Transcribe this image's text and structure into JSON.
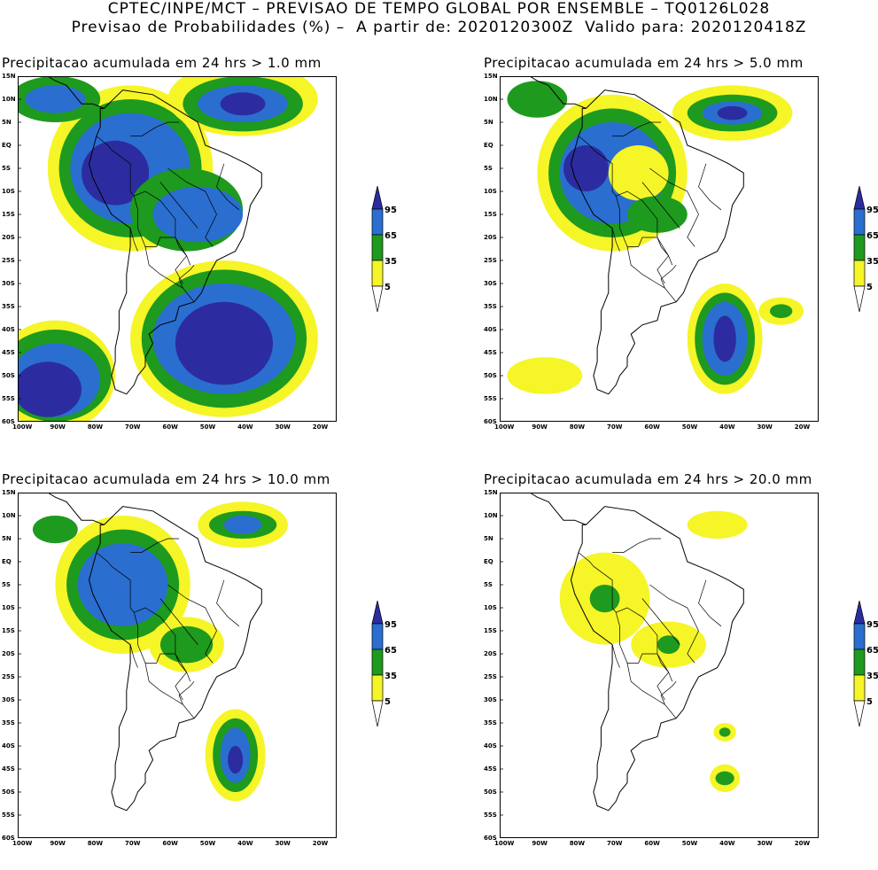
{
  "header": {
    "line1": "CPTEC/INPE/MCT – PREVISAO DE TEMPO GLOBAL POR ENSEMBLE – TQ0126L028",
    "line2": "Previsao de Probabilidades (%) –  A partir de: 2020120300Z  Valido para: 2020120418Z"
  },
  "panels": [
    {
      "title": "Precipitacao acumulada em 24 hrs > 1.0 mm"
    },
    {
      "title": "Precipitacao acumulada em 24 hrs > 5.0 mm"
    },
    {
      "title": "Precipitacao acumulada em 24 hrs > 10.0 mm"
    },
    {
      "title": "Precipitacao acumulada em 24 hrs > 20.0 mm"
    }
  ],
  "axes": {
    "lat_labels": [
      "15N",
      "10N",
      "5N",
      "EQ",
      "5S",
      "10S",
      "15S",
      "20S",
      "25S",
      "30S",
      "35S",
      "40S",
      "45S",
      "50S",
      "55S",
      "60S"
    ],
    "lon_labels": [
      "100W",
      "90W",
      "80W",
      "70W",
      "60W",
      "50W",
      "40W",
      "30W",
      "20W"
    ]
  },
  "colorbar": {
    "labels": [
      "95",
      "65",
      "35",
      "5"
    ],
    "colors": {
      "c95": "#2c2ca0",
      "c65": "#2a6ed0",
      "c35": "#1e9a1e",
      "c5": "#f5f528"
    }
  }
}
